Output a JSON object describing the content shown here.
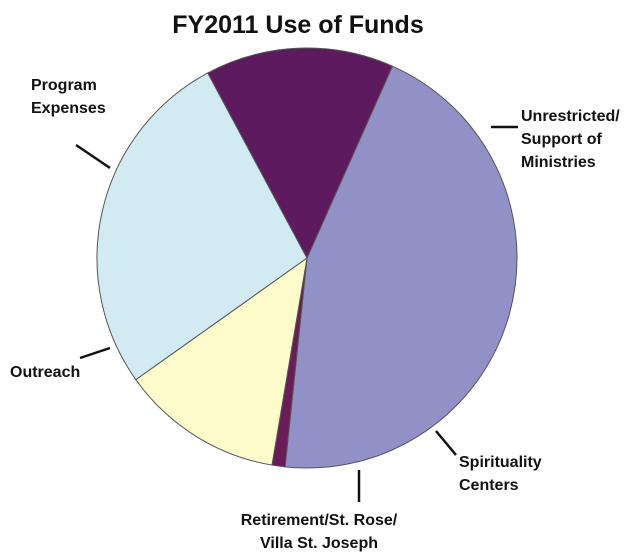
{
  "chart_data": {
    "type": "pie",
    "title": "FY2011 Use of Funds",
    "slices": [
      {
        "label_lines": [
          "Unrestricted/",
          "Support of",
          "Ministries"
        ],
        "value": 45.0,
        "color": "#9191c8"
      },
      {
        "label_lines": [
          "Spirituality",
          "Centers"
        ],
        "value": 1.0,
        "color": "#6b1a5a"
      },
      {
        "label_lines": [
          "Retirement/St. Rose/",
          "Villa St. Joseph"
        ],
        "value": 12.5,
        "color": "#fefbcb"
      },
      {
        "label_lines": [
          "Outreach"
        ],
        "value": 27.0,
        "color": "#d2ebf3"
      },
      {
        "label_lines": [
          "Program",
          "Expenses"
        ],
        "value": 14.5,
        "color": "#5d1a5e"
      }
    ],
    "start_angle_deg": -66,
    "legend": "none"
  }
}
